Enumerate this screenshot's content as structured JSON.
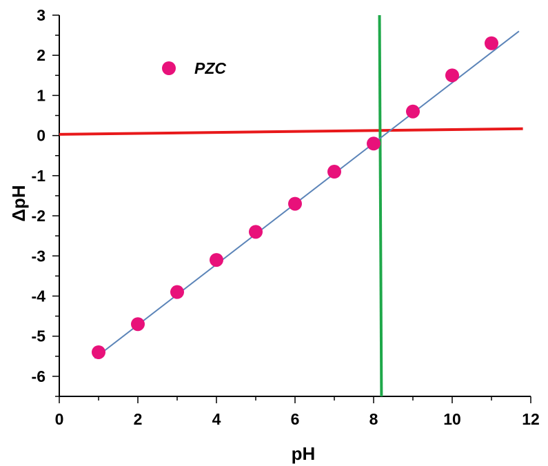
{
  "chart_data": {
    "type": "scatter",
    "title": "",
    "xlabel": "pH",
    "ylabel": "ΔpH",
    "xlim": [
      0,
      12
    ],
    "ylim": [
      -6.5,
      3
    ],
    "x_ticks": [
      0,
      2,
      4,
      6,
      8,
      10,
      12
    ],
    "y_ticks": [
      -6,
      -5,
      -4,
      -3,
      -2,
      -1,
      0,
      1,
      2,
      3
    ],
    "grid": false,
    "legend": {
      "position": "top-left"
    },
    "series": [
      {
        "name": "PZC",
        "type": "scatter",
        "color": "#e8117a",
        "x": [
          1,
          2,
          3,
          4,
          5,
          6,
          7,
          8,
          9,
          10,
          11
        ],
        "y": [
          -5.4,
          -4.7,
          -3.9,
          -3.1,
          -2.4,
          -1.7,
          -0.9,
          -0.2,
          0.6,
          1.5,
          2.3
        ]
      }
    ],
    "fit_line": {
      "color": "#5b84b8",
      "x": [
        0.9,
        11.7
      ],
      "y": [
        -5.55,
        2.6
      ]
    },
    "reference_lines": [
      {
        "color": "#e8191b",
        "x": [
          0,
          11.8
        ],
        "y": [
          0.03,
          0.17
        ]
      },
      {
        "color": "#1fa84a",
        "x": [
          8.15,
          8.2
        ],
        "y": [
          3.0,
          -6.5
        ]
      }
    ]
  }
}
